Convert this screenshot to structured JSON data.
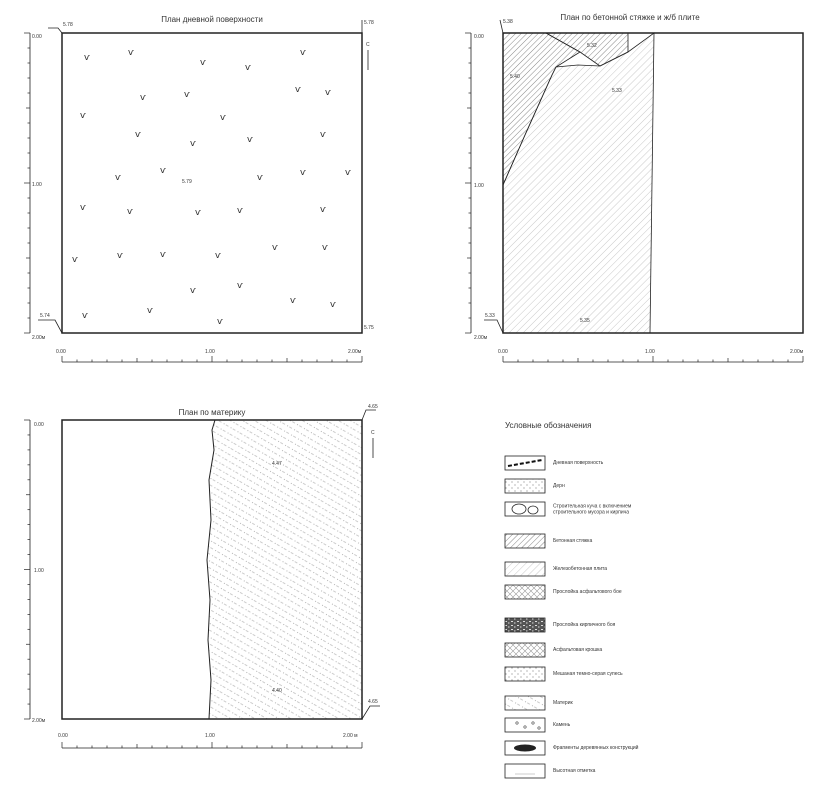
{
  "plan1": {
    "title": "План дневной поверхности",
    "corner_tl": "5.78",
    "corner_tr": "5.78",
    "corner_bl": "5.74",
    "corner_br": "5.75",
    "center_elev": "5.79",
    "y_ticks": [
      "0.00",
      "1.00",
      "2.00м"
    ],
    "x_ticks": [
      "0.00",
      "1.00",
      "2.00м"
    ],
    "north": "С"
  },
  "plan2": {
    "title": "План по бетонной стяжке и ж/б плите",
    "corner_tl": "5.38",
    "corner_bl": "5.33",
    "elev_a": "5.40",
    "elev_b": "5.32",
    "elev_c": "5.33",
    "elev_d": "5.35",
    "y_ticks": [
      "0.00",
      "1.00",
      "2.00м"
    ],
    "x_ticks": [
      "0.00",
      "1.00",
      "2.00м"
    ],
    "north": "С"
  },
  "plan3": {
    "title": "План по материку",
    "corner_tr": "4.65",
    "corner_br": "4.65",
    "elev_top": "4.47",
    "elev_bottom": "4.40",
    "y_ticks": [
      "0.00",
      "1.00",
      "2.00м"
    ],
    "x_ticks": [
      "0.00",
      "1.00",
      "2.00 м"
    ],
    "north": "С"
  },
  "legend": {
    "title": "Условные обозначения",
    "items": [
      {
        "label": "Дневная поверхность"
      },
      {
        "label": "Дерн"
      },
      {
        "label": "Строительная куча с включением строительного мусора и кирпича"
      },
      {
        "label": "Бетонная стяжка"
      },
      {
        "label": "Железобетонная плита"
      },
      {
        "label": "Прослойка асфальтового бое"
      },
      {
        "label": "Прослойка кирпичного боя"
      },
      {
        "label": "Асфальтовая крошка"
      },
      {
        "label": "Мешаная темно-серая супесь"
      },
      {
        "label": "Материк"
      },
      {
        "label": "Камень"
      },
      {
        "label": "Фрагменты деревянных конструкций"
      },
      {
        "label": "Высотная отметка"
      }
    ]
  }
}
